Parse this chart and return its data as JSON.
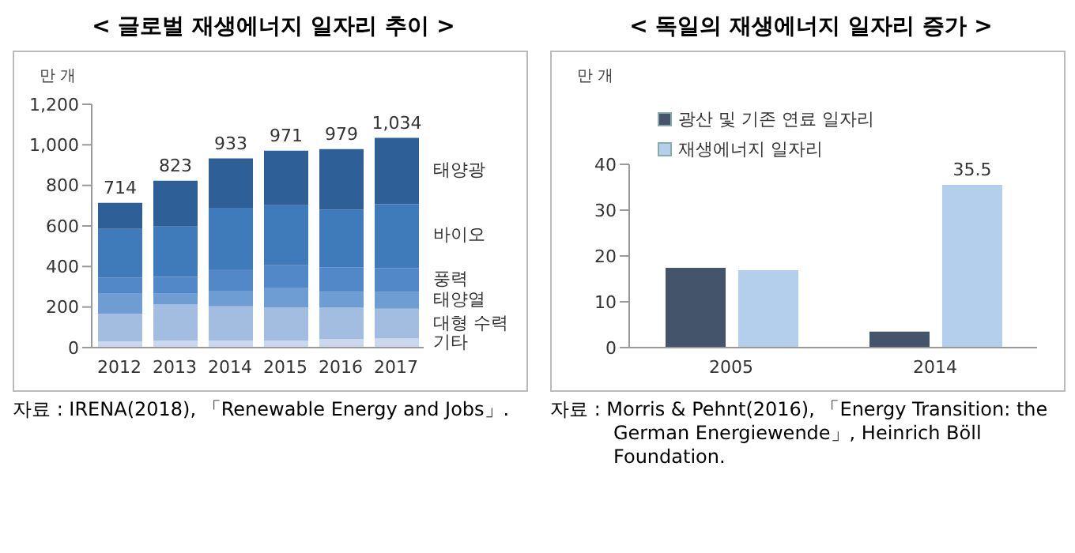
{
  "chart_data": [
    {
      "type": "bar",
      "title": "< 글로벌 재생에너지 일자리 추이 >",
      "ylabel": "만 개",
      "categories": [
        "2012",
        "2013",
        "2014",
        "2015",
        "2016",
        "2017"
      ],
      "stacked": true,
      "grid": false,
      "legend": false,
      "series": [
        {
          "name": "기타",
          "color": "#c9d8ec",
          "values": [
            30,
            35,
            35,
            35,
            42,
            45
          ]
        },
        {
          "name": "대형 수력",
          "color": "#a3bde0",
          "values": [
            137,
            177,
            169,
            164,
            155,
            147
          ]
        },
        {
          "name": "태양열",
          "color": "#6d9dd3",
          "values": [
            99,
            54,
            77,
            97,
            79,
            82
          ]
        },
        {
          "name": "풍력",
          "color": "#5288c8",
          "values": [
            80,
            83,
            105,
            110,
            120,
            119
          ]
        },
        {
          "name": "바이오",
          "color": "#3f7abb",
          "values": [
            239,
            248,
            304,
            296,
            284,
            314
          ]
        },
        {
          "name": "태양광",
          "color": "#2e5f97",
          "values": [
            129,
            226,
            243,
            269,
            299,
            327
          ]
        }
      ],
      "totals": [
        "714",
        "823",
        "933",
        "971",
        "979",
        "1,034"
      ],
      "ylim": [
        0,
        1200
      ],
      "yticks": [
        0,
        {
          "value": 200,
          "label": "200"
        },
        {
          "value": 400,
          "label": "400"
        },
        {
          "value": 600,
          "label": "600"
        },
        {
          "value": 800,
          "label": "800"
        },
        {
          "value": 1000,
          "label": "1,000"
        },
        {
          "value": 1200,
          "label": "1,200"
        }
      ],
      "annotations": [
        "자료 : IRENA(2018), 「Renewable Energy and Jobs」."
      ]
    },
    {
      "type": "bar",
      "title": "< 독일의 재생에너지 일자리 증가 >",
      "ylabel": "만 개",
      "categories": [
        "2005",
        "2014"
      ],
      "grid": false,
      "legend": "top left",
      "series": [
        {
          "name": "광산 및 기존 연료 일자리",
          "color": "#44546a",
          "values": [
            17.4,
            3.5
          ]
        },
        {
          "name": "재생에너지 일자리",
          "color": "#b4cfec",
          "values": [
            16.9,
            35.5
          ],
          "value_labels": [
            null,
            "35.5"
          ]
        }
      ],
      "ylim": [
        0,
        40
      ],
      "yticks": [
        0,
        10,
        20,
        30,
        40
      ],
      "annotations": [
        "자료 : Morris & Pehnt(2016), 「Energy Transition: the German Energiewende」, Heinrich Böll Foundation."
      ]
    }
  ]
}
